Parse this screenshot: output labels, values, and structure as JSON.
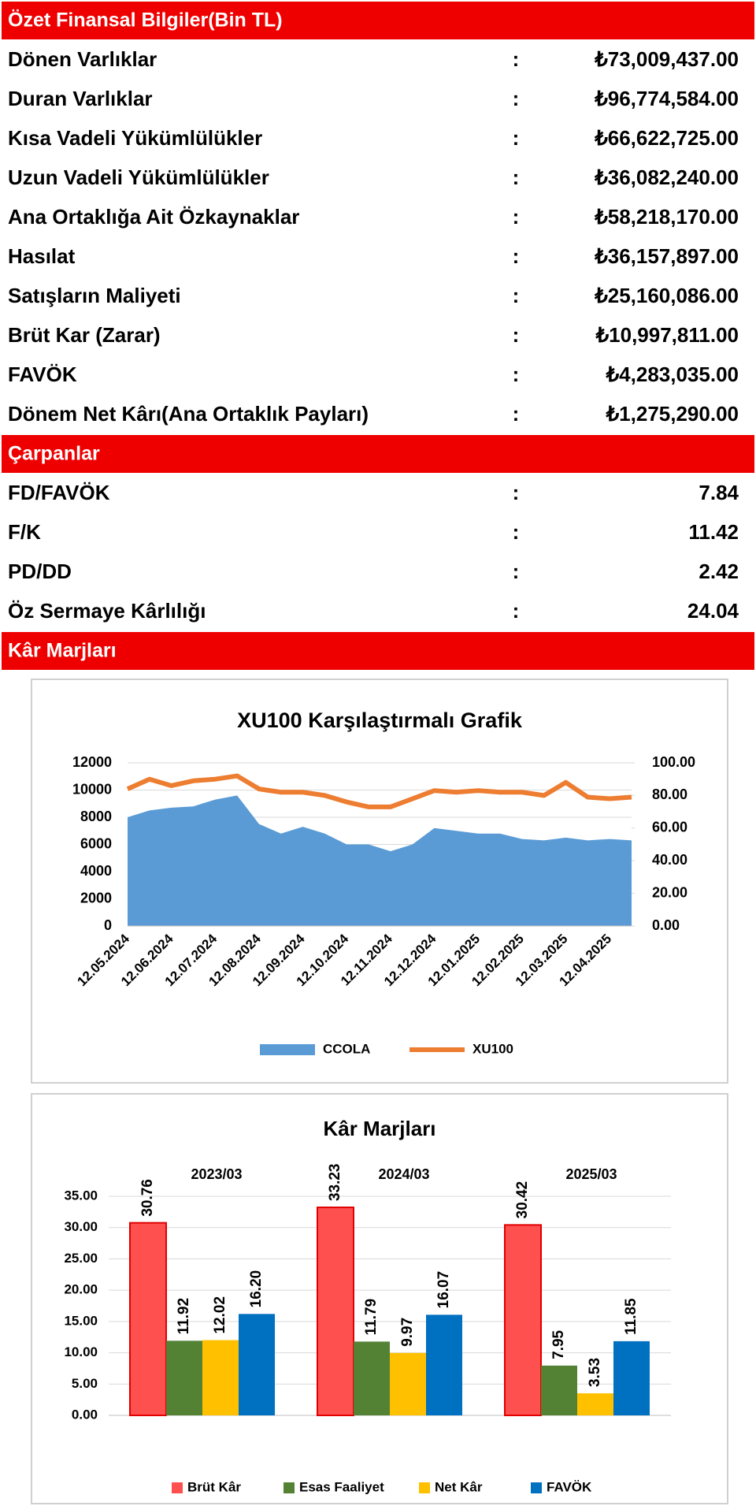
{
  "sections": [
    {
      "title": "Özet Finansal Bilgiler(Bin TL)",
      "rows": [
        {
          "label": "Dönen Varlıklar",
          "value": "₺73,009,437.00"
        },
        {
          "label": "Duran Varlıklar",
          "value": "₺96,774,584.00"
        },
        {
          "label": "Kısa Vadeli Yükümlülükler",
          "value": "₺66,622,725.00"
        },
        {
          "label": "Uzun Vadeli Yükümlülükler",
          "value": "₺36,082,240.00"
        },
        {
          "label": "Ana Ortaklığa Ait Özkaynaklar",
          "value": "₺58,218,170.00"
        },
        {
          "label": "Hasılat",
          "value": "₺36,157,897.00"
        },
        {
          "label": "Satışların Maliyeti",
          "value": "₺25,160,086.00"
        },
        {
          "label": "Brüt Kar (Zarar)",
          "value": "₺10,997,811.00"
        },
        {
          "label": "FAVÖK",
          "value": "₺4,283,035.00"
        },
        {
          "label": "Dönem Net Kârı(Ana Ortaklık Payları)",
          "value": "₺1,275,290.00"
        }
      ]
    },
    {
      "title": "Çarpanlar",
      "rows": [
        {
          "label": "FD/FAVÖK",
          "value": "7.84"
        },
        {
          "label": "F/K",
          "value": "11.42"
        },
        {
          "label": "PD/DD",
          "value": "2.42"
        },
        {
          "label": "Öz Sermaye Kârlılığı",
          "value": "24.04"
        }
      ]
    },
    {
      "title": "Kâr Marjları",
      "rows": []
    }
  ],
  "separator": ":",
  "chart_data": [
    {
      "type": "area-line",
      "title": "XU100 Karşılaştırmalı  Grafik",
      "categories": [
        "12.05.2024",
        null,
        "12.06.2024",
        null,
        "12.07.2024",
        null,
        "12.08.2024",
        null,
        "12.09.2024",
        null,
        "12.10.2024",
        null,
        "12.11.2024",
        null,
        "12.12.2024",
        null,
        "12.01.2025",
        null,
        "12.02.2025",
        null,
        "12.03.2025",
        null,
        "12.04.2025",
        null
      ],
      "series": [
        {
          "name": "CCOLA",
          "color": "#5b9bd5",
          "values": [
            8000,
            8500,
            8700,
            8800,
            9300,
            9600,
            7500,
            6800,
            7300,
            6800,
            6000,
            6000,
            5500,
            6000,
            7200,
            7000,
            6800,
            6800,
            6400,
            6300,
            6500,
            6300,
            6400,
            6300
          ]
        },
        {
          "name": "XU100",
          "color": "#ed7d31",
          "axis": "y2",
          "values": [
            84,
            90,
            86,
            89,
            90,
            92,
            84,
            82,
            82,
            80,
            76,
            73,
            73,
            78,
            83,
            82,
            83,
            82,
            82,
            80,
            88,
            79,
            78,
            79
          ]
        }
      ],
      "ylim": [
        0,
        12000
      ],
      "yticks": [
        0,
        2000,
        4000,
        6000,
        8000,
        10000,
        12000
      ],
      "y2lim": [
        0,
        100
      ],
      "y2ticks": [
        {
          "value": 0,
          "label": "0.00"
        },
        {
          "value": 20,
          "label": "20.00"
        },
        {
          "value": 40,
          "label": "40.00"
        },
        {
          "value": 60,
          "label": "60.00"
        },
        {
          "value": 80,
          "label": "80.00"
        },
        {
          "value": 100,
          "label": "100.00"
        }
      ],
      "legend": "bottom"
    },
    {
      "type": "bar",
      "title": "Kâr Marjları",
      "categories": [
        "2023/03",
        "2024/03",
        "2025/03"
      ],
      "series": [
        {
          "name": "Brüt Kâr",
          "color": "#ff5050",
          "values": [
            30.76,
            33.23,
            30.42
          ],
          "value_labels": [
            "30.76",
            "33.23",
            "30.42"
          ]
        },
        {
          "name": "Esas Faaliyet",
          "color": "#548235",
          "values": [
            11.92,
            11.79,
            7.95
          ],
          "value_labels": [
            "11.92",
            "11.79",
            "7.95"
          ]
        },
        {
          "name": "Net Kâr",
          "color": "#ffc000",
          "values": [
            12.02,
            9.97,
            3.53
          ],
          "value_labels": [
            "12.02",
            "9.97",
            "3.53"
          ]
        },
        {
          "name": "FAVÖK",
          "color": "#0070c0",
          "values": [
            16.2,
            16.07,
            11.85
          ],
          "value_labels": [
            "16.20",
            "16.07",
            "11.85"
          ]
        }
      ],
      "ylim": [
        0,
        35
      ],
      "yticks": [
        {
          "value": 0,
          "label": "0.00"
        },
        {
          "value": 5,
          "label": "5.00"
        },
        {
          "value": 10,
          "label": "10.00"
        },
        {
          "value": 15,
          "label": "15.00"
        },
        {
          "value": 20,
          "label": "20.00"
        },
        {
          "value": 25,
          "label": "25.00"
        },
        {
          "value": 30,
          "label": "30.00"
        },
        {
          "value": 35,
          "label": "35.00"
        }
      ],
      "grid": true,
      "legend": "bottom"
    }
  ]
}
